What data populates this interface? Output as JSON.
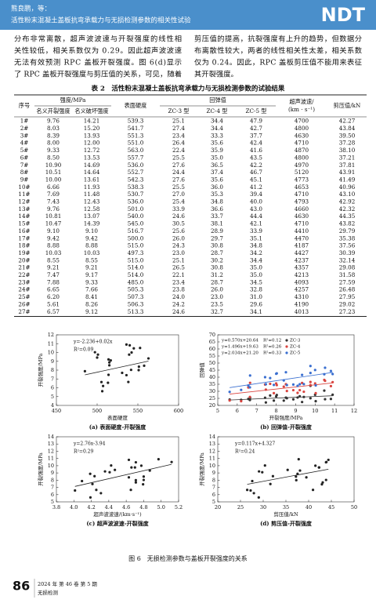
{
  "header": {
    "authors": "熊良鹏，等：",
    "title": "活性粉末混凝土盖板抗弯承载力与无损检测参数的相关性试验",
    "logo": "NDT"
  },
  "body": {
    "left": [
      "分布非常离散，超声波波速与开裂强度的线性相",
      "关性较低，相关系数仅为 0.29。因此超声波波速",
      "无法有效预测 RPC 盖板开裂强度。图 6(d)显示",
      "了 RPC 盖板开裂强度与剪压值的关系，可见，随着"
    ],
    "right": [
      "剪压值的提高，抗裂强度有上升的趋势，但数据分",
      "布离散性较大，两者的线性相关性太差，相关系数",
      "仅为 0.24。因此，RPC 盖板剪压值不能用来表征",
      "其开裂强度。"
    ]
  },
  "table": {
    "caption": "表 2　活性粉末混凝土盖板抗弯承载力与无损检测参数的试验结果",
    "headers": {
      "index": "序号",
      "strength": "强度/MPa",
      "crack": "名义开裂强度",
      "failure": "名义破坏强度",
      "hardness": "表面硬度",
      "rebound": "回弹值",
      "zc3": "ZC-3 型",
      "zc4": "ZC-4 型",
      "zc5": "ZC-5 型",
      "velocity": [
        "超声波速/",
        "(km · s⁻¹)"
      ],
      "shear": "剪压值/kN"
    },
    "rows": [
      [
        "1#",
        "9.76",
        "14.21",
        "539.3",
        "25.1",
        "34.4",
        "47.9",
        "4700",
        "42.27"
      ],
      [
        "2#",
        "8.03",
        "15.20",
        "541.7",
        "27.4",
        "34.4",
        "42.7",
        "4800",
        "43.84"
      ],
      [
        "3#",
        "8.39",
        "13.93",
        "551.3",
        "23.4",
        "33.3",
        "37.7",
        "4630",
        "39.50"
      ],
      [
        "4#",
        "8.00",
        "12.00",
        "551.0",
        "26.4",
        "35.6",
        "42.4",
        "4710",
        "37.28"
      ],
      [
        "5#",
        "9.33",
        "12.72",
        "563.0",
        "22.4",
        "35.9",
        "41.6",
        "4870",
        "38.10"
      ],
      [
        "6#",
        "8.50",
        "13.53",
        "557.7",
        "25.5",
        "35.0",
        "43.5",
        "4800",
        "37.21"
      ],
      [
        "7#",
        "10.90",
        "14.69",
        "536.0",
        "27.6",
        "36.5",
        "42.2",
        "4970",
        "37.81"
      ],
      [
        "8#",
        "10.51",
        "14.64",
        "552.7",
        "24.4",
        "37.4",
        "46.7",
        "5120",
        "43.91"
      ],
      [
        "9#",
        "10.00",
        "13.61",
        "542.3",
        "27.6",
        "35.6",
        "45.1",
        "4773",
        "41.49"
      ],
      [
        "10#",
        "6.66",
        "11.93",
        "538.3",
        "25.5",
        "36.0",
        "41.2",
        "4653",
        "40.96"
      ],
      [
        "11#",
        "7.69",
        "11.48",
        "530.7",
        "27.0",
        "35.3",
        "39.4",
        "4710",
        "43.10"
      ],
      [
        "12#",
        "7.43",
        "12.43",
        "536.0",
        "25.4",
        "34.8",
        "40.0",
        "4793",
        "42.92"
      ],
      [
        "13#",
        "9.76",
        "12.58",
        "501.0",
        "33.9",
        "36.6",
        "43.0",
        "4660",
        "42.32"
      ],
      [
        "14#",
        "10.81",
        "13.07",
        "540.0",
        "24.6",
        "33.7",
        "44.4",
        "4630",
        "44.35"
      ],
      [
        "15#",
        "10.47",
        "14.39",
        "545.0",
        "30.5",
        "38.1",
        "42.1",
        "4710",
        "43.82"
      ],
      [
        "16#",
        "9.10",
        "9.10",
        "516.7",
        "25.6",
        "28.9",
        "33.9",
        "4410",
        "29.79"
      ],
      [
        "17#",
        "9.42",
        "9.42",
        "500.0",
        "26.0",
        "29.7",
        "35.1",
        "4470",
        "35.38"
      ],
      [
        "18#",
        "8.88",
        "8.88",
        "515.0",
        "24.3",
        "30.8",
        "34.8",
        "4187",
        "37.56"
      ],
      [
        "19#",
        "10.03",
        "10.03",
        "497.3",
        "23.0",
        "28.7",
        "34.2",
        "4427",
        "30.39"
      ],
      [
        "20#",
        "8.55",
        "8.55",
        "515.0",
        "25.1",
        "30.2",
        "34.4",
        "4237",
        "32.14"
      ],
      [
        "21#",
        "9.21",
        "9.21",
        "514.0",
        "26.5",
        "30.8",
        "35.0",
        "4357",
        "29.08"
      ],
      [
        "22#",
        "7.47",
        "9.17",
        "514.0",
        "22.1",
        "31.2",
        "35.0",
        "4213",
        "31.58"
      ],
      [
        "23#",
        "7.88",
        "9.33",
        "485.0",
        "23.4",
        "28.7",
        "34.5",
        "4093",
        "27.59"
      ],
      [
        "24#",
        "6.65",
        "7.66",
        "505.3",
        "23.8",
        "26.0",
        "32.8",
        "4257",
        "26.48"
      ],
      [
        "25#",
        "6.20",
        "8.41",
        "507.3",
        "24.0",
        "23.0",
        "31.0",
        "4310",
        "27.95"
      ],
      [
        "26#",
        "5.61",
        "8.26",
        "506.3",
        "24.2",
        "23.5",
        "29.6",
        "4190",
        "29.02"
      ],
      [
        "27#",
        "6.57",
        "9.12",
        "513.3",
        "24.6",
        "32.7",
        "34.1",
        "4013",
        "27.23"
      ]
    ]
  },
  "figure": {
    "caption": "图 6　无损检测参数与盖板开裂强度的关系",
    "panels": [
      {
        "caption": "(a) 表面硬度-开裂强度",
        "xlabel": "表面硬度",
        "ylabel": "开裂强度/MPa",
        "xlim": [
          450,
          600
        ],
        "xticks": [
          450,
          500,
          550,
          600
        ],
        "ylim": [
          4,
          12
        ],
        "yticks": [
          4,
          5,
          6,
          7,
          8,
          9,
          10,
          11,
          12
        ],
        "series": [
          {
            "color": "#222222",
            "equation": "y=-2.236+0.02x",
            "r2": "R²=0.09"
          }
        ]
      },
      {
        "caption": "(b) 回弹值-开裂强度",
        "xlabel": "开裂强度/MPa",
        "ylabel": "回弹值",
        "xlim": [
          5,
          12
        ],
        "xticks": [
          5,
          6,
          7,
          8,
          9,
          10,
          11,
          12
        ],
        "ylim": [
          20,
          70
        ],
        "yticks": [
          20,
          25,
          30,
          35,
          40,
          45,
          50,
          55,
          60,
          65,
          70
        ],
        "series": [
          {
            "name": "ZC-3",
            "color": "#333333",
            "equation": "y=0.570x+20.64",
            "r2": "R²=0.12"
          },
          {
            "name": "ZC-4",
            "color": "#d9443f",
            "equation": "y=1.496x+19.63",
            "r2": "R²=0.26"
          },
          {
            "name": "ZC-5",
            "color": "#3a6fd0",
            "equation": "y=2.034x+21.20",
            "r2": "R²=0.33"
          }
        ]
      },
      {
        "caption": "(c) 超声波波速-开裂强度",
        "xlabel": "超声波波速/(km·s⁻¹)",
        "ylabel": "开裂强度/MPa",
        "xlim": [
          3800,
          5200
        ],
        "xticks": [
          {
            "value": 3800,
            "label": "3.8"
          },
          {
            "value": 4000,
            "label": "4.0"
          },
          {
            "value": 4200,
            "label": "4.2"
          },
          {
            "value": 4400,
            "label": "4.4"
          },
          {
            "value": 4600,
            "label": "4.6"
          },
          {
            "value": 4800,
            "label": "4.8"
          },
          {
            "value": 5000,
            "label": "5.0"
          },
          {
            "value": 5200,
            "label": "5.2"
          }
        ],
        "ylim": [
          5,
          14
        ],
        "yticks": [
          5,
          6,
          7,
          8,
          9,
          10,
          11,
          12,
          13,
          14
        ],
        "series": [
          {
            "color": "#222222",
            "equation": "y=2.76x-3.94",
            "r2": "R²=0.29"
          }
        ]
      },
      {
        "caption": "(d) 剪压值-开裂强度",
        "xlabel": "剪压值/kN",
        "ylabel": "开裂强度/MPa",
        "xlim": [
          20,
          50
        ],
        "xticks": [
          20,
          25,
          30,
          35,
          40,
          45,
          50
        ],
        "ylim": [
          5,
          14
        ],
        "yticks": [
          5,
          6,
          7,
          8,
          9,
          10,
          11,
          12,
          13,
          14
        ],
        "series": [
          {
            "color": "#222222",
            "equation": "y=0.117x+4.327",
            "r2": "R²=0.24"
          }
        ]
      }
    ]
  },
  "footer": {
    "page": "86",
    "issue": "2024 年 第 46 卷 第 5 期",
    "journal": "无损检测"
  }
}
